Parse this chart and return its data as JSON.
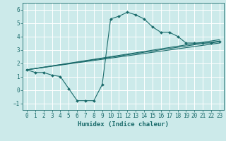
{
  "xlabel": "Humidex (Indice chaleur)",
  "bg_color": "#cceaea",
  "grid_color": "#ffffff",
  "line_color": "#1a6b6b",
  "xlim": [
    -0.5,
    23.5
  ],
  "ylim": [
    -1.5,
    6.5
  ],
  "xticks": [
    0,
    1,
    2,
    3,
    4,
    5,
    6,
    7,
    8,
    9,
    10,
    11,
    12,
    13,
    14,
    15,
    16,
    17,
    18,
    19,
    20,
    21,
    22,
    23
  ],
  "yticks": [
    -1,
    0,
    1,
    2,
    3,
    4,
    5,
    6
  ],
  "main_series": {
    "x": [
      0,
      1,
      2,
      3,
      4,
      5,
      6,
      7,
      8,
      9,
      10,
      11,
      12,
      13,
      14,
      15,
      16,
      17,
      18,
      19,
      20,
      21,
      22,
      23
    ],
    "y": [
      1.5,
      1.3,
      1.3,
      1.1,
      1.0,
      0.1,
      -0.8,
      -0.8,
      -0.8,
      0.4,
      5.3,
      5.5,
      5.8,
      5.6,
      5.3,
      4.7,
      4.3,
      4.3,
      4.0,
      3.5,
      3.5,
      3.5,
      3.5,
      3.6
    ]
  },
  "trend_lines": [
    {
      "x": [
        0,
        23
      ],
      "y": [
        1.5,
        3.5
      ]
    },
    {
      "x": [
        0,
        23
      ],
      "y": [
        1.5,
        3.65
      ]
    },
    {
      "x": [
        0,
        23
      ],
      "y": [
        1.5,
        3.75
      ]
    }
  ]
}
